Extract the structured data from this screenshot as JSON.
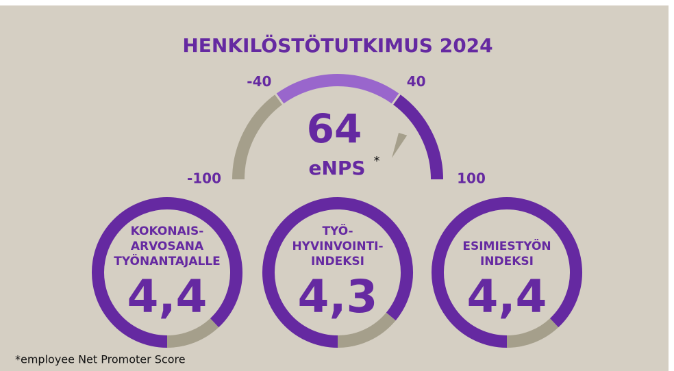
{
  "chart_data": [
    {
      "type": "gauge",
      "title": "HENKILÖSTÖTUTKIMUS 2024",
      "value": 64,
      "label": "eNPS",
      "label_mark": "*",
      "xlim": [
        -100,
        100
      ],
      "xticks": [
        -100,
        -40,
        40,
        100
      ],
      "band_colors": [
        "#a59f8b",
        "#9966cc",
        "#6529a1"
      ],
      "pointer_color": "#a59f8b",
      "color": "#6529a1"
    },
    {
      "type": "ring",
      "label": [
        "KOKONAIS-",
        "ARVOSANA",
        "TYÖNANTAJALLE"
      ],
      "value": 4.4,
      "value_label": "4,4",
      "ylim": [
        0,
        5
      ],
      "color": "#6529a1",
      "track_color": "#a59f8b"
    },
    {
      "type": "ring",
      "label": [
        "TYÖ-",
        "HYVINVOINTI-",
        "INDEKSI"
      ],
      "value": 4.3,
      "value_label": "4,3",
      "ylim": [
        0,
        5
      ],
      "color": "#6529a1",
      "track_color": "#a59f8b"
    },
    {
      "type": "ring",
      "label": [
        "ESIMIESTYÖN",
        "INDEKSI"
      ],
      "value": 4.4,
      "value_label": "4,4",
      "ylim": [
        0,
        5
      ],
      "color": "#6529a1",
      "track_color": "#a59f8b"
    }
  ],
  "footnote": "*employee Net Promoter Score"
}
